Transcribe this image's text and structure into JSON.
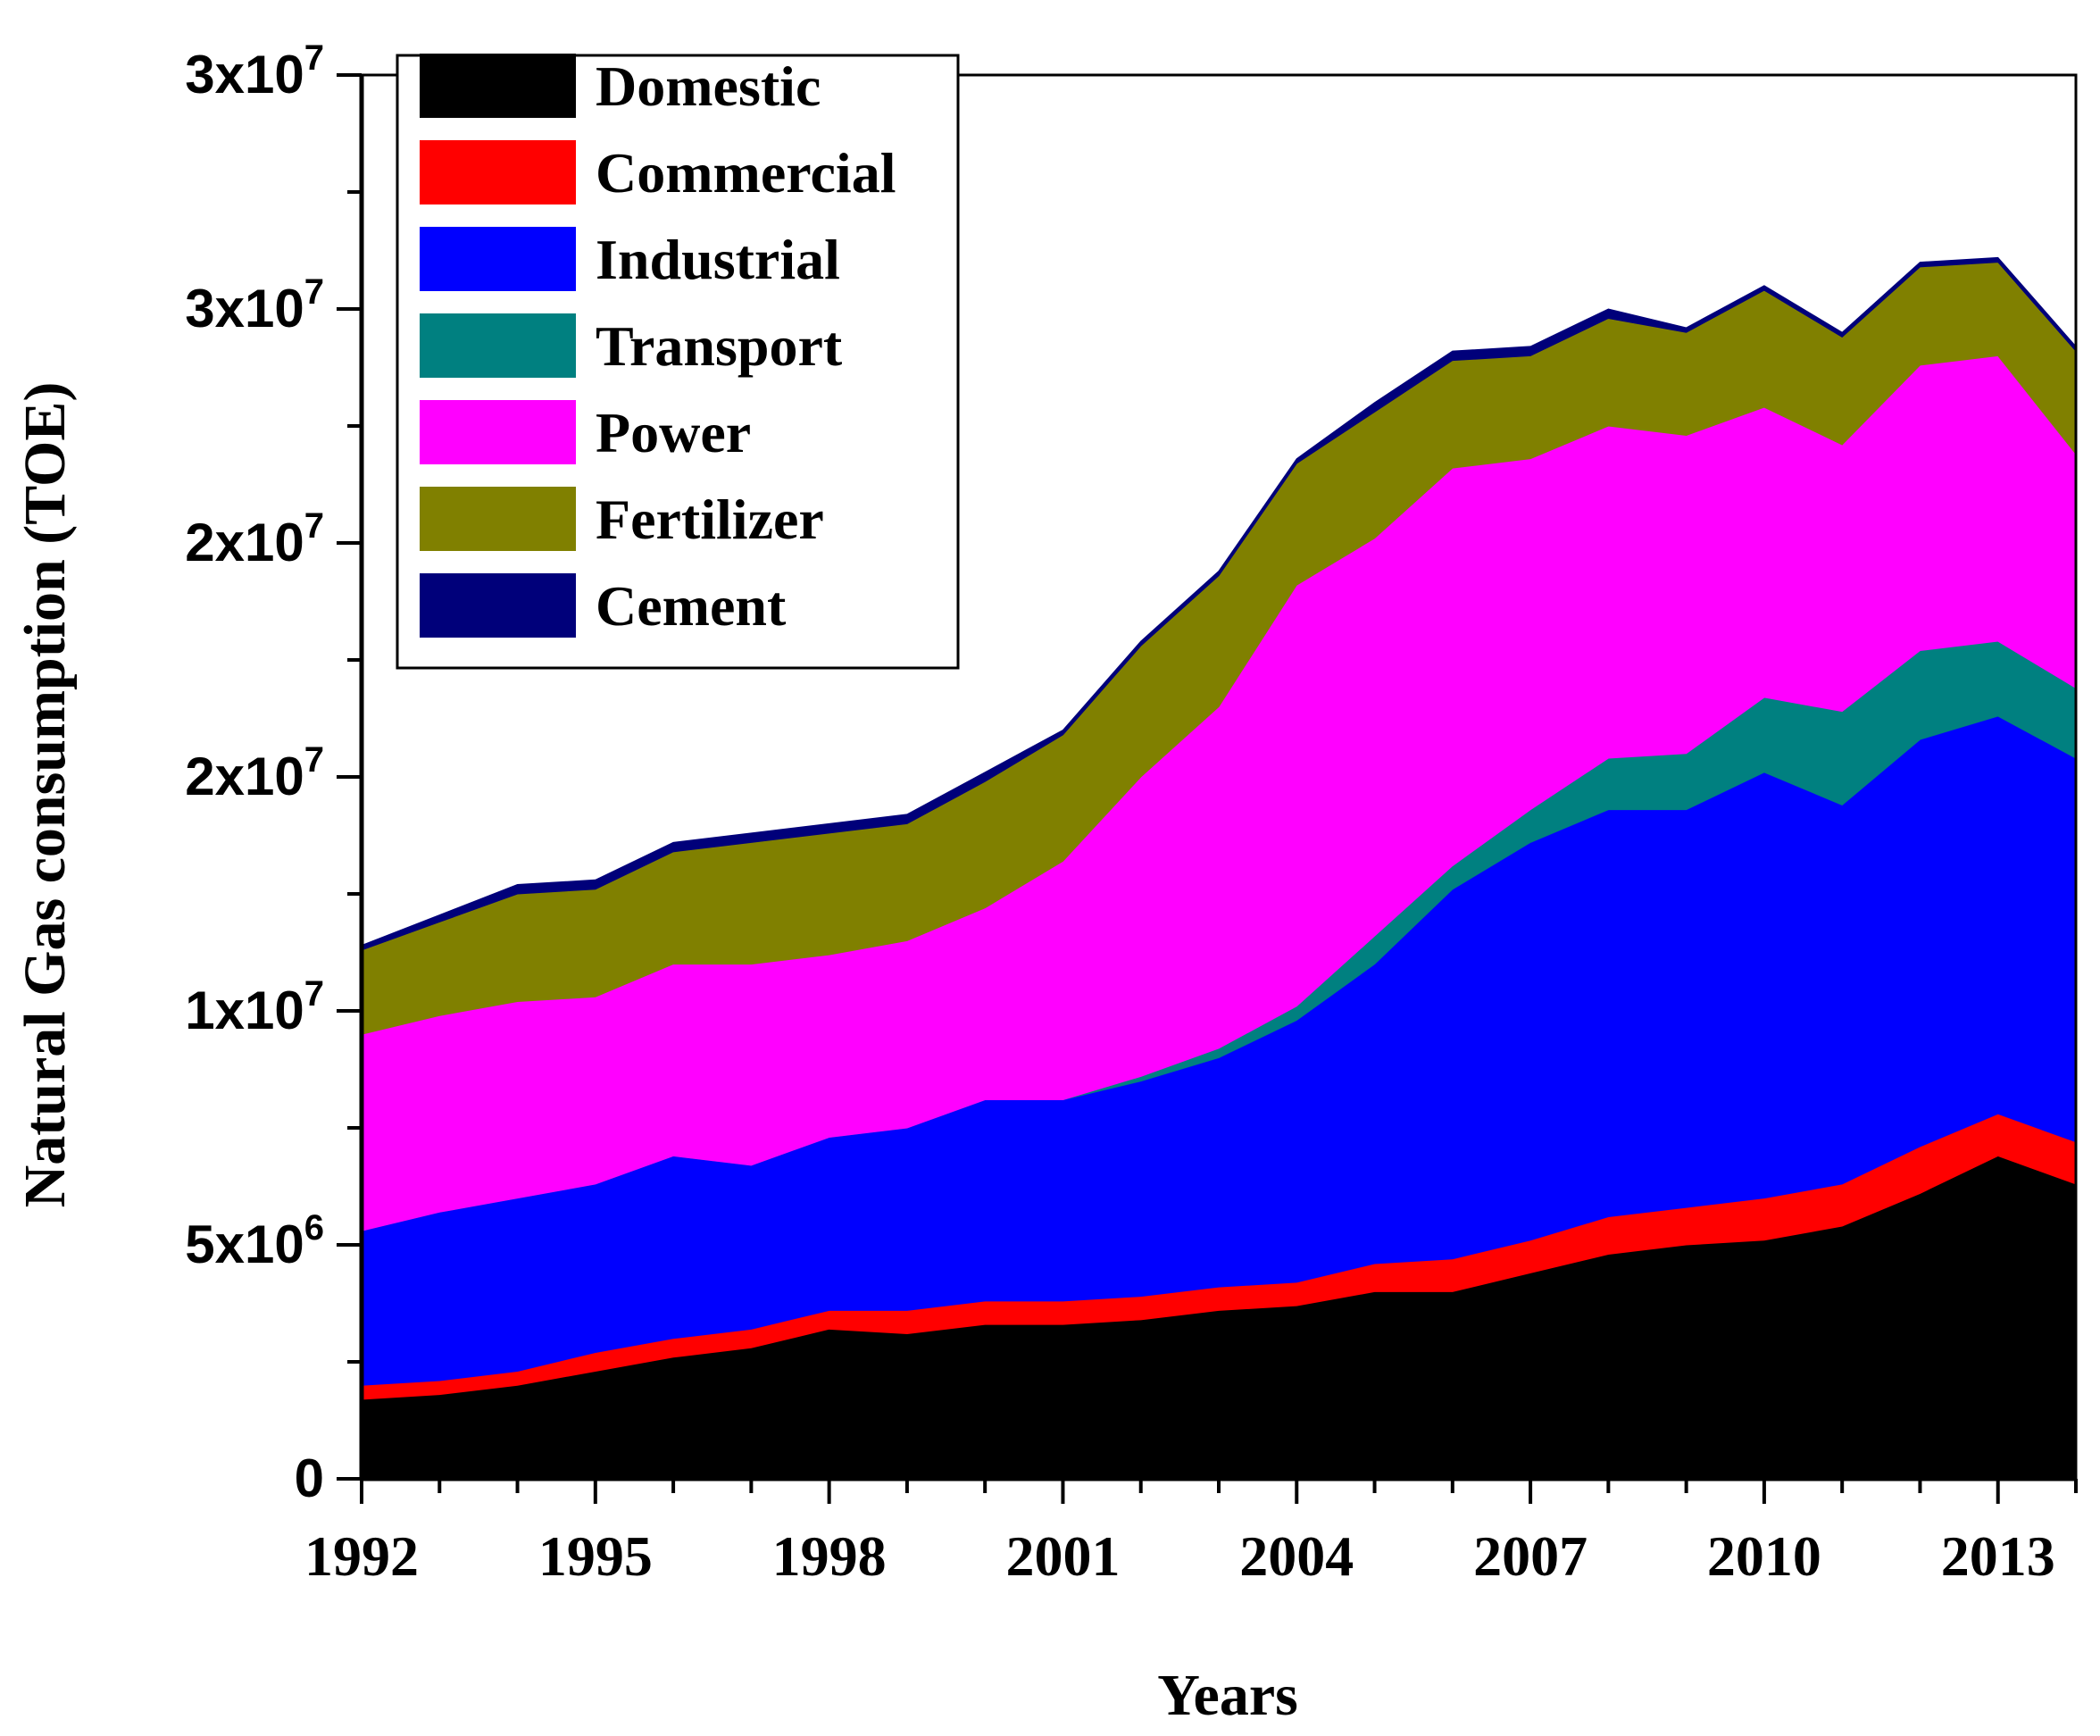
{
  "chart_data": {
    "type": "area",
    "stacked": true,
    "title": "",
    "xlabel": "Years",
    "ylabel": "Natural Gas consumption (TOE)",
    "x": [
      1992,
      1993,
      1994,
      1995,
      1996,
      1997,
      1998,
      1999,
      2000,
      2001,
      2002,
      2003,
      2004,
      2005,
      2006,
      2007,
      2008,
      2009,
      2010,
      2011,
      2012,
      2013,
      2014
    ],
    "xlim": [
      1992,
      2014
    ],
    "ylim": [
      0,
      30000000
    ],
    "x_ticks": [
      "1992",
      "1995",
      "1998",
      "2001",
      "2004",
      "2007",
      "2010",
      "2013"
    ],
    "y_ticks": [
      {
        "value": 0,
        "mantissa": "0",
        "exp": ""
      },
      {
        "value": 5000000,
        "mantissa": "5x10",
        "exp": "6"
      },
      {
        "value": 10000000,
        "mantissa": "1x10",
        "exp": "7"
      },
      {
        "value": 15000000,
        "mantissa": "2x10",
        "exp": "7"
      },
      {
        "value": 20000000,
        "mantissa": "2x10",
        "exp": "7"
      },
      {
        "value": 25000000,
        "mantissa": "3x10",
        "exp": "7"
      },
      {
        "value": 30000000,
        "mantissa": "3x10",
        "exp": "7"
      }
    ],
    "legend_position": "top-left",
    "series": [
      {
        "name": "Domestic",
        "color": "#000000",
        "values": [
          1700000,
          1800000,
          2000000,
          2300000,
          2600000,
          2800000,
          3200000,
          3100000,
          3300000,
          3300000,
          3400000,
          3600000,
          3700000,
          4000000,
          4000000,
          4400000,
          4800000,
          5000000,
          5100000,
          5400000,
          6100000,
          6900000,
          6300000
        ]
      },
      {
        "name": "Commercial",
        "color": "#ff0000",
        "values": [
          300000,
          300000,
          300000,
          400000,
          400000,
          400000,
          400000,
          500000,
          500000,
          500000,
          500000,
          500000,
          500000,
          600000,
          700000,
          700000,
          800000,
          800000,
          900000,
          900000,
          1000000,
          900000,
          900000
        ]
      },
      {
        "name": "Industrial",
        "color": "#0000ff",
        "values": [
          3300000,
          3600000,
          3700000,
          3600000,
          3900000,
          3500000,
          3700000,
          3900000,
          4300000,
          4300000,
          4600000,
          4900000,
          5600000,
          6400000,
          7900000,
          8500000,
          8700000,
          8500000,
          9100000,
          8100000,
          8700000,
          8500000,
          8200000
        ]
      },
      {
        "name": "Transport",
        "color": "#008080",
        "values": [
          0,
          0,
          0,
          0,
          0,
          0,
          0,
          0,
          0,
          0,
          100000,
          200000,
          300000,
          600000,
          500000,
          700000,
          1100000,
          1200000,
          1600000,
          2000000,
          1900000,
          1600000,
          1500000
        ]
      },
      {
        "name": "Power",
        "color": "#ff00ff",
        "values": [
          4200000,
          4200000,
          4200000,
          4000000,
          4100000,
          4300000,
          3900000,
          4000000,
          4100000,
          5100000,
          6400000,
          7300000,
          9000000,
          8500000,
          8500000,
          7500000,
          7100000,
          6800000,
          6200000,
          5700000,
          6100000,
          6100000,
          5000000
        ]
      },
      {
        "name": "Fertilizer",
        "color": "#808000",
        "values": [
          1800000,
          2000000,
          2300000,
          2300000,
          2400000,
          2600000,
          2600000,
          2500000,
          2700000,
          2700000,
          2800000,
          2800000,
          2600000,
          2700000,
          2300000,
          2200000,
          2300000,
          2200000,
          2500000,
          2300000,
          2100000,
          2000000,
          2200000
        ]
      },
      {
        "name": "Cement",
        "color": "#00007a",
        "values": [
          100000,
          150000,
          200000,
          200000,
          200000,
          200000,
          200000,
          200000,
          200000,
          100000,
          100000,
          100000,
          100000,
          200000,
          200000,
          200000,
          200000,
          100000,
          100000,
          100000,
          100000,
          100000,
          100000
        ]
      }
    ]
  }
}
